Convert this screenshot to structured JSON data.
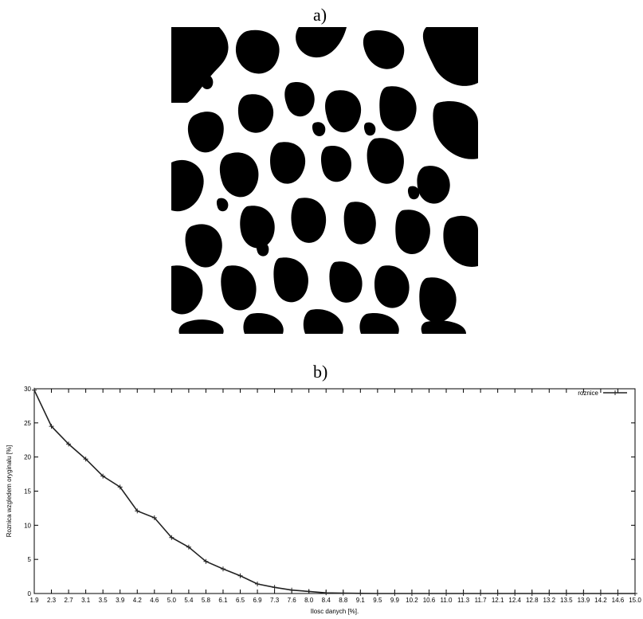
{
  "panels": {
    "a_label": "a)",
    "b_label": "b)"
  },
  "chart_data": {
    "type": "line",
    "xlabel": "Ilosc danych [%].",
    "ylabel": "Roznica wzgledem oryginalu [%]",
    "ylim": [
      0,
      30
    ],
    "yticks": [
      "0",
      "5",
      "10",
      "15",
      "20",
      "25",
      "30"
    ],
    "grid": false,
    "legend_position": "top-right",
    "categories": [
      "1.9",
      "2.3",
      "2.7",
      "3.1",
      "3.5",
      "3.9",
      "4.2",
      "4.6",
      "5.0",
      "5.4",
      "5.8",
      "6.1",
      "6.5",
      "6.9",
      "7.3",
      "7.6",
      "8.0",
      "8.4",
      "8.8",
      "9.1",
      "9.5",
      "9.9",
      "10.2",
      "10.6",
      "11.0",
      "11.3",
      "11.7",
      "12.1",
      "12.4",
      "12.8",
      "13.2",
      "13.5",
      "13.9",
      "14.2",
      "14.6",
      "15.0"
    ],
    "series": [
      {
        "name": "roznice",
        "values": [
          29.8,
          24.5,
          21.9,
          19.7,
          17.2,
          15.6,
          12.1,
          11.1,
          8.2,
          6.8,
          4.7,
          3.6,
          2.6,
          1.4,
          0.9,
          0.5,
          0.3,
          0.1,
          0.05,
          0.02,
          0,
          0,
          0,
          0,
          0,
          0,
          0,
          0,
          0,
          0,
          0,
          0,
          0,
          0,
          0,
          0
        ]
      }
    ]
  }
}
